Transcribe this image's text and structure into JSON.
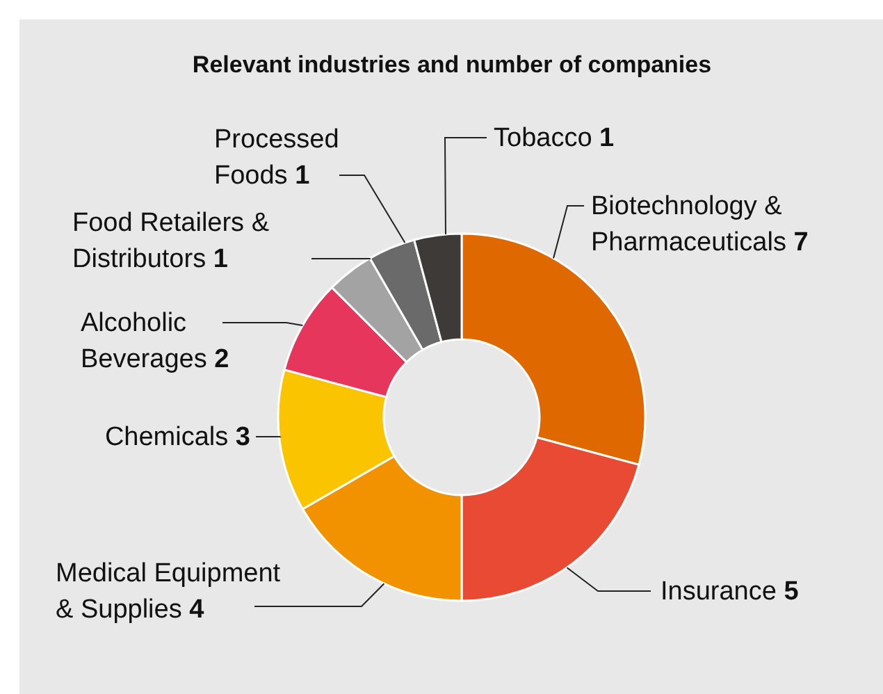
{
  "chart_data": {
    "type": "donut",
    "title": "Relevant industries and number of companies",
    "categories": [
      "Biotechnology & Pharmaceuticals",
      "Insurance",
      "Medical Equipment & Supplies",
      "Chemicals",
      "Alcoholic Beverages",
      "Food Retailers & Distributors",
      "Processed Foods",
      "Tobacco"
    ],
    "values": [
      7,
      5,
      4,
      3,
      2,
      1,
      1,
      1
    ],
    "colors": [
      "#df6800",
      "#e84a33",
      "#f39200",
      "#fbc400",
      "#e6365b",
      "#a3a3a3",
      "#6a6a6a",
      "#3e3a38"
    ],
    "data_labels": true
  }
}
